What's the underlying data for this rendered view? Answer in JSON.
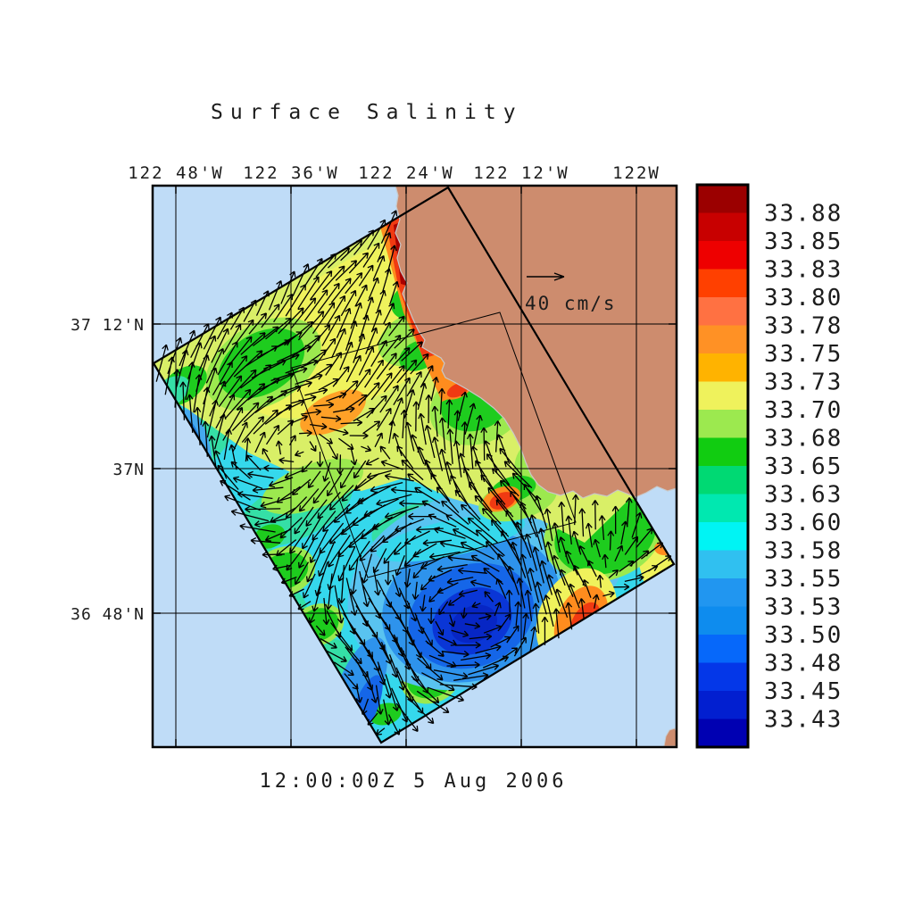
{
  "title": "Surface Salinity",
  "timestamp": "12:00:00Z   5 Aug 2006",
  "axes": {
    "top_tick_labels": [
      "122 48'W",
      "122 36'W",
      "122 24'W",
      "122 12'W",
      "122W"
    ],
    "left_tick_labels": [
      "37 12'N",
      "37N",
      "36 48'N"
    ]
  },
  "reference_vector": {
    "label": "40 cm/s"
  },
  "colorbar": {
    "tick_labels": [
      "33.88",
      "33.85",
      "33.83",
      "33.80",
      "33.78",
      "33.75",
      "33.73",
      "33.70",
      "33.68",
      "33.65",
      "33.63",
      "33.60",
      "33.58",
      "33.55",
      "33.53",
      "33.50",
      "33.48",
      "33.45",
      "33.43"
    ],
    "band_colors_top_to_bottom": [
      "#9B0000",
      "#C80000",
      "#EE0000",
      "#FF4000",
      "#FF7142",
      "#FF9125",
      "#FFB300",
      "#EFF25C",
      "#9CE94F",
      "#11CC11",
      "#00D973",
      "#00E8B0",
      "#00F4F4",
      "#30C0F0",
      "#2196F0",
      "#0E8CEE",
      "#0668FA",
      "#0437E8",
      "#021FD0",
      "#0000B2"
    ]
  },
  "colors": {
    "ocean": "#BFDCF7",
    "land": "#CD8C6E",
    "coastline": "#C8C8C8",
    "vectors": "#000000",
    "frame": "#000000"
  },
  "chart_data": {
    "type": "heatmap",
    "title": "Surface Salinity",
    "valid_time_label": "12:00:00Z   5 Aug 2006",
    "x_tick_labels": [
      "122 48'W",
      "122 36'W",
      "122 24'W",
      "122 12'W",
      "122W"
    ],
    "y_tick_labels": [
      "37 12'N",
      "37N",
      "36 48'N"
    ],
    "colorbar_levels": [
      33.43,
      33.45,
      33.48,
      33.5,
      33.53,
      33.55,
      33.58,
      33.6,
      33.63,
      33.65,
      33.68,
      33.7,
      33.73,
      33.75,
      33.78,
      33.8,
      33.83,
      33.85,
      33.88
    ],
    "value_range": [
      33.43,
      33.88
    ],
    "colorbar_band_colors_top_to_bottom": [
      "#9B0000",
      "#C80000",
      "#EE0000",
      "#FF4000",
      "#FF7142",
      "#FF9125",
      "#FFB300",
      "#EFF25C",
      "#9CE94F",
      "#11CC11",
      "#00D973",
      "#00E8B0",
      "#00F4F4",
      "#30C0F0",
      "#2196F0",
      "#0E8CEE",
      "#0668FA",
      "#0437E8",
      "#021FD0",
      "#0000B2"
    ],
    "vector_overlay": {
      "reference_label": "40 cm/s",
      "reference_value_cm_per_s": 40
    },
    "legend_position": "right colorbar",
    "grid": true
  }
}
